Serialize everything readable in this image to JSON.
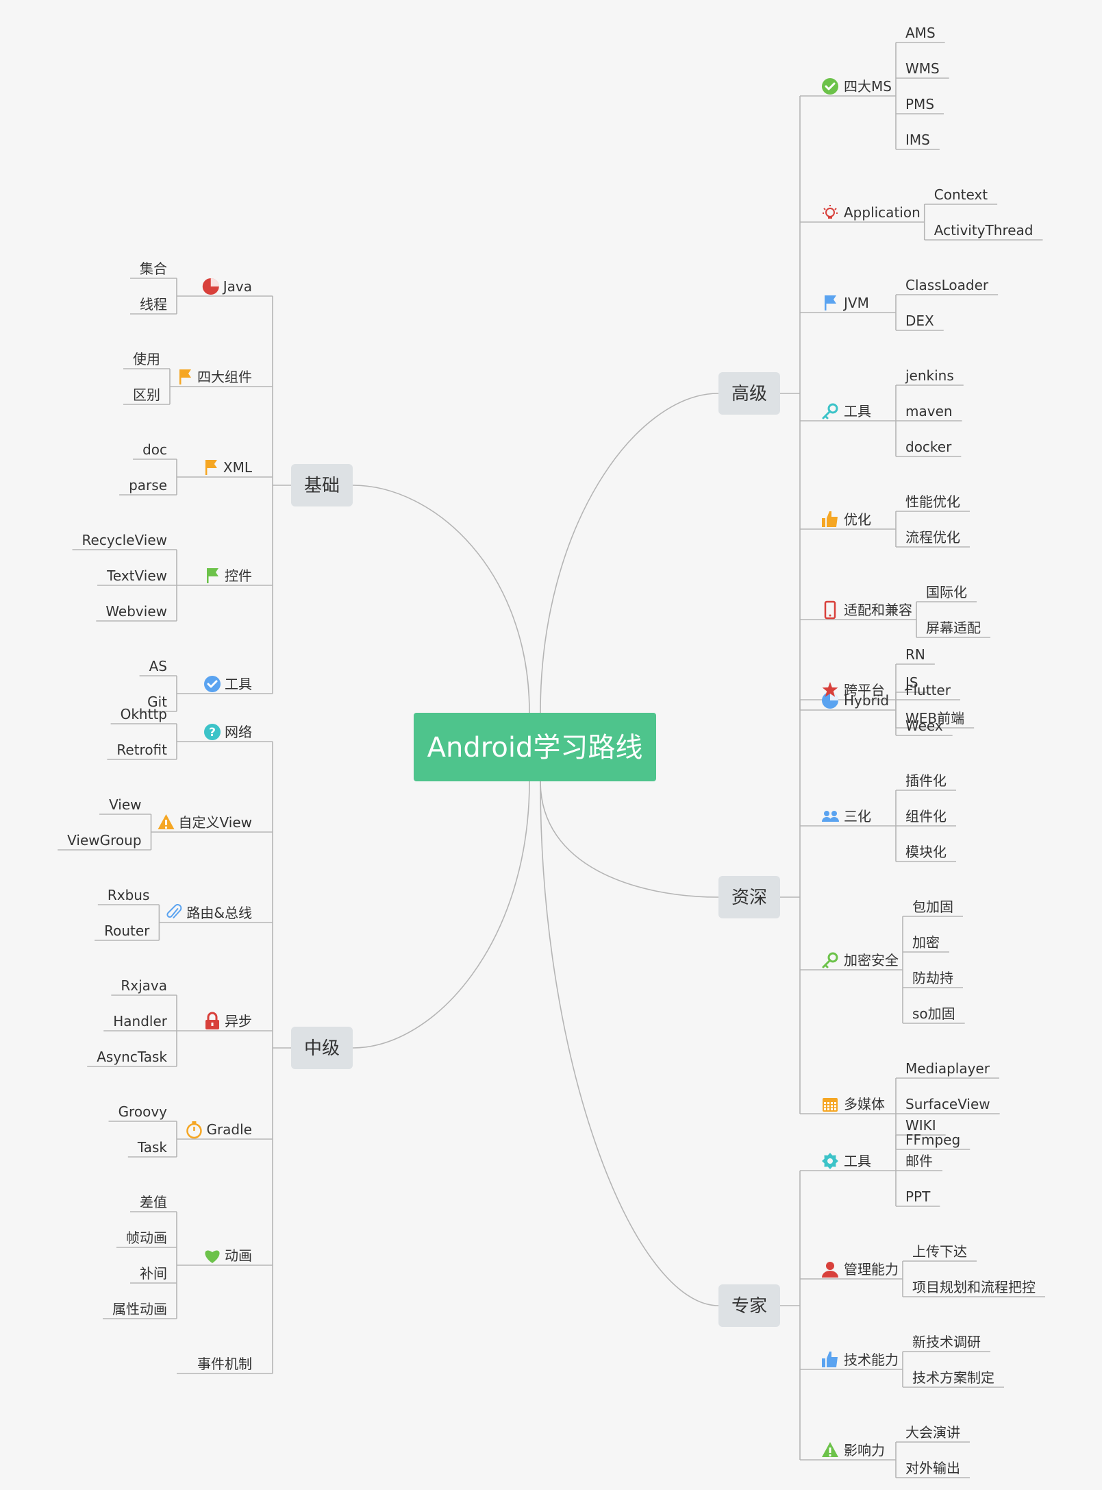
{
  "root": {
    "label": "Android学习路线",
    "color": "#4ec48c"
  },
  "colors": {
    "line": "#b5b5b5",
    "branch_bg": "#dde1e4"
  },
  "branches": [
    {
      "label": "基础",
      "side": "left",
      "children": [
        {
          "label": "Java",
          "icon": "pie-chart-icon",
          "icon_color": "#d8403b",
          "children": [
            "集合",
            "线程"
          ]
        },
        {
          "label": "四大组件",
          "icon": "flag-icon",
          "icon_color": "#f5a623",
          "children": [
            "使用",
            "区别"
          ]
        },
        {
          "label": "XML",
          "icon": "flag-icon",
          "icon_color": "#f5a623",
          "children": [
            "doc",
            "parse"
          ]
        },
        {
          "label": "控件",
          "icon": "flag-icon",
          "icon_color": "#6cc24a",
          "children": [
            "RecycleView",
            "TextView",
            "Webview"
          ]
        },
        {
          "label": "工具",
          "icon": "check-circle-icon",
          "icon_color": "#5aa3f0",
          "children": [
            "AS",
            "Git"
          ]
        }
      ]
    },
    {
      "label": "中级",
      "side": "left",
      "children": [
        {
          "label": "网络",
          "icon": "question-circle-icon",
          "icon_color": "#3cc3c8",
          "children": [
            "Okhttp",
            "Retrofit"
          ]
        },
        {
          "label": "自定义View",
          "icon": "warning-icon",
          "icon_color": "#f5a623",
          "children": [
            "View",
            "ViewGroup"
          ]
        },
        {
          "label": "路由&总线",
          "icon": "paperclip-icon",
          "icon_color": "#5aa3f0",
          "children": [
            "Rxbus",
            "Router"
          ]
        },
        {
          "label": "异步",
          "icon": "lock-icon",
          "icon_color": "#d8403b",
          "children": [
            "Rxjava",
            "Handler",
            "AsyncTask"
          ]
        },
        {
          "label": "Gradle",
          "icon": "stopwatch-icon",
          "icon_color": "#f5a623",
          "children": [
            "Groovy",
            "Task"
          ]
        },
        {
          "label": "动画",
          "icon": "heart-icon",
          "icon_color": "#6cc24a",
          "children": [
            "差值",
            "帧动画",
            "补间",
            "属性动画"
          ]
        },
        {
          "label": "事件机制",
          "icon": "",
          "icon_color": "",
          "children": []
        }
      ]
    },
    {
      "label": "高级",
      "side": "right",
      "children": [
        {
          "label": "四大MS",
          "icon": "check-circle-icon",
          "icon_color": "#6cc24a",
          "children": [
            "AMS",
            "WMS",
            "PMS",
            "IMS"
          ]
        },
        {
          "label": "Application",
          "icon": "lightbulb-icon",
          "icon_color": "#d8403b",
          "children": [
            "Context",
            "ActivityThread"
          ]
        },
        {
          "label": "JVM",
          "icon": "flag-icon",
          "icon_color": "#5aa3f0",
          "children": [
            "ClassLoader",
            "DEX"
          ]
        },
        {
          "label": "工具",
          "icon": "key-icon",
          "icon_color": "#3cc3c8",
          "children": [
            "jenkins",
            "maven",
            "docker"
          ]
        },
        {
          "label": "优化",
          "icon": "thumbs-up-icon",
          "icon_color": "#f5a623",
          "children": [
            "性能优化",
            "流程优化"
          ]
        },
        {
          "label": "适配和兼容",
          "icon": "phone-icon",
          "icon_color": "#d8403b",
          "children": [
            "国际化",
            "屏幕适配"
          ]
        },
        {
          "label": "Hybrid",
          "icon": "pie-chart-icon",
          "icon_color": "#5aa3f0",
          "children": [
            "JS",
            "WEB前端"
          ]
        }
      ]
    },
    {
      "label": "资深",
      "side": "right",
      "children": [
        {
          "label": "跨平台",
          "icon": "star-icon",
          "icon_color": "#d8403b",
          "children": [
            "RN",
            "Flutter",
            "Weex"
          ]
        },
        {
          "label": "三化",
          "icon": "people-icon",
          "icon_color": "#5aa3f0",
          "children": [
            "插件化",
            "组件化",
            "模块化"
          ]
        },
        {
          "label": "加密安全",
          "icon": "key-icon",
          "icon_color": "#6cc24a",
          "children": [
            "包加固",
            "加密",
            "防劫持",
            "so加固"
          ]
        },
        {
          "label": "多媒体",
          "icon": "calendar-icon",
          "icon_color": "#f5a623",
          "children": [
            "Mediaplayer",
            "SurfaceView",
            "FFmpeg"
          ]
        }
      ]
    },
    {
      "label": "专家",
      "side": "right",
      "children": [
        {
          "label": "工具",
          "icon": "gear-icon",
          "icon_color": "#3cc3c8",
          "children": [
            "WIKI",
            "邮件",
            "PPT"
          ]
        },
        {
          "label": "管理能力",
          "icon": "person-icon",
          "icon_color": "#d8403b",
          "children": [
            "上传下达",
            "项目规划和流程把控"
          ]
        },
        {
          "label": "技术能力",
          "icon": "thumbs-up-icon",
          "icon_color": "#5aa3f0",
          "children": [
            "新技术调研",
            "技术方案制定"
          ]
        },
        {
          "label": "影响力",
          "icon": "warning-icon",
          "icon_color": "#6cc24a",
          "children": [
            "大会演讲",
            "对外输出"
          ]
        }
      ]
    }
  ]
}
